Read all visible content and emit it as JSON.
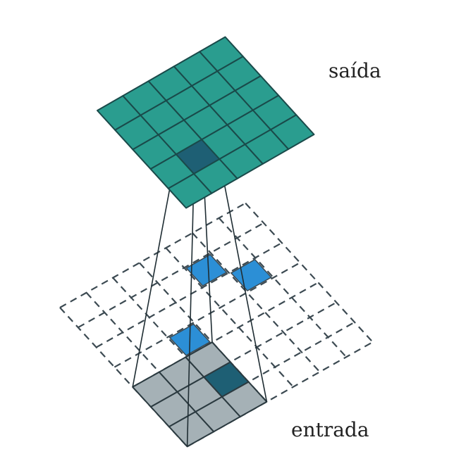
{
  "labels": {
    "output": "saída",
    "input": "entrada"
  },
  "colors": {
    "output_fill": "#2a9d8f",
    "output_stroke": "#1a4a4a",
    "output_highlight": "#1e5f74",
    "kernel_fill": "#a5b1b6",
    "kernel_highlight": "#1e5f74",
    "inserted_fill": "#2c8fd6",
    "grid_stroke": "#3c4a52",
    "projection": "#1f2d33"
  },
  "output_grid": {
    "rows": 5,
    "cols": 5,
    "highlight_cell": [
      3,
      1
    ]
  },
  "input_grid": {
    "rows": 7,
    "cols": 7,
    "kernel_size": 3,
    "kernel_highlight_cell": [
      1,
      2
    ],
    "inserted_cells": [
      [
        3,
        2
      ],
      [
        1,
        4
      ],
      [
        2,
        5
      ]
    ]
  }
}
